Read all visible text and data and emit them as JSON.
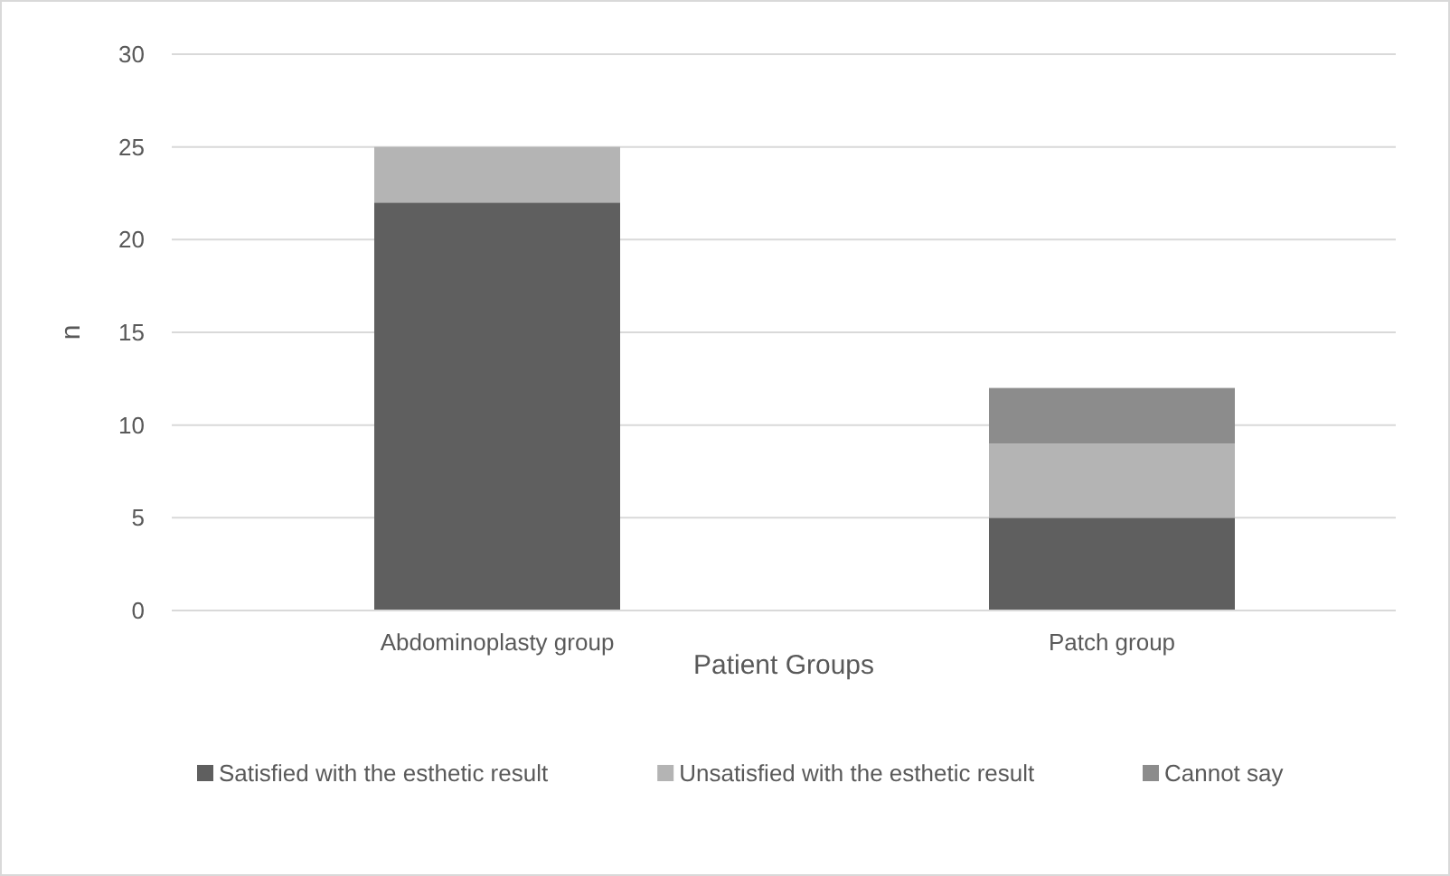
{
  "chart_data": {
    "type": "bar",
    "stacked": true,
    "categories": [
      "Abdominoplasty group",
      "Patch group"
    ],
    "series": [
      {
        "name": "Satisfied with the esthetic result",
        "color": "#5f5f5f",
        "values": [
          22,
          5
        ]
      },
      {
        "name": "Unsatisfied with the esthetic result",
        "color": "#b4b4b4",
        "values": [
          3,
          4
        ]
      },
      {
        "name": "Cannot say",
        "color": "#8c8c8c",
        "values": [
          0,
          3
        ]
      }
    ],
    "xlabel": "Patient Groups",
    "ylabel": "n",
    "ylim": [
      0,
      30
    ],
    "yticks": [
      0,
      5,
      10,
      15,
      20,
      25,
      30
    ],
    "grid": "y",
    "legend": "bottom"
  }
}
